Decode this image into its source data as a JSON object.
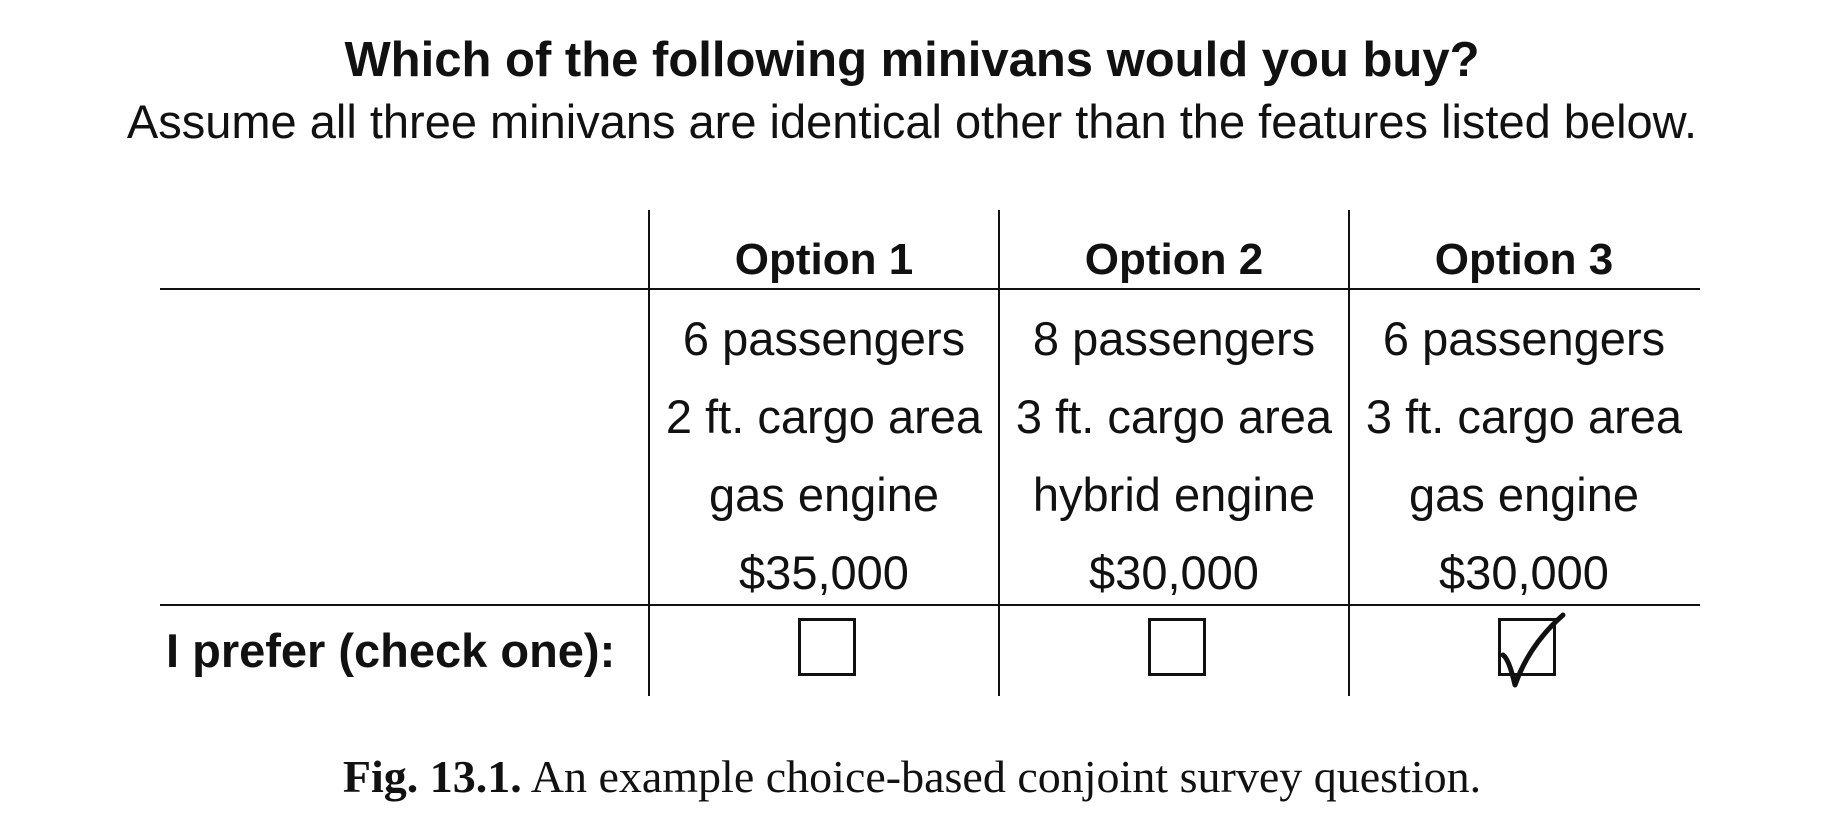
{
  "question": {
    "title": "Which of the following minivans would you buy?",
    "subtitle": "Assume all three minivans are identical other than the features listed below."
  },
  "options": [
    {
      "header": "Option 1",
      "features": [
        "6 passengers",
        "2 ft. cargo area",
        "gas engine",
        "$35,000"
      ],
      "checked": false
    },
    {
      "header": "Option 2",
      "features": [
        "8 passengers",
        "3 ft. cargo area",
        "hybrid engine",
        "$30,000"
      ],
      "checked": false
    },
    {
      "header": "Option 3",
      "features": [
        "6 passengers",
        "3 ft. cargo area",
        "gas engine",
        "$30,000"
      ],
      "checked": true
    }
  ],
  "prefer_label": "I prefer (check one):",
  "caption": {
    "label": "Fig. 13.1.",
    "text": " An example choice-based conjoint survey question."
  }
}
